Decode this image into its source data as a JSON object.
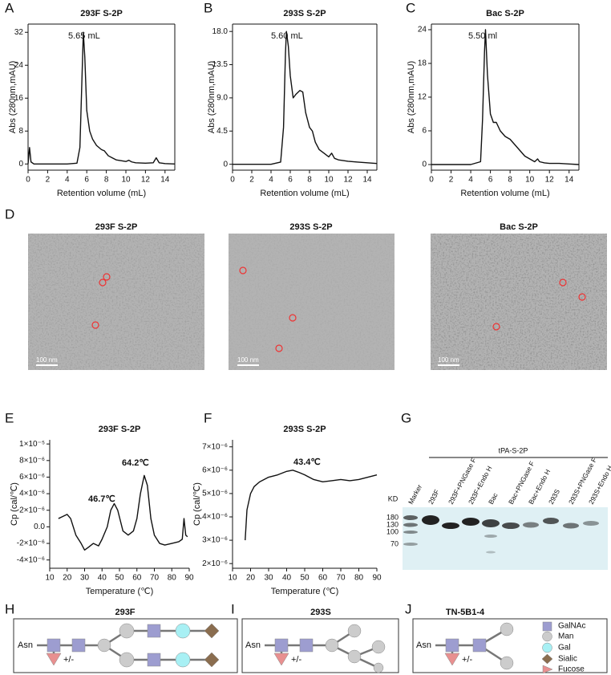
{
  "panel_letters": [
    "A",
    "B",
    "C",
    "D",
    "E",
    "F",
    "G",
    "H",
    "I",
    "J"
  ],
  "chart_data": [
    {
      "type": "line",
      "title": "293F S-2P",
      "xlabel": "Retention volume (mL)",
      "ylabel": "Abs (280nm,mAU)",
      "box": true,
      "xlim": [
        0,
        15
      ],
      "xticks": [
        0,
        2,
        4,
        6,
        8,
        10,
        12,
        14
      ],
      "ylim": [
        -1.5,
        34
      ],
      "yticks": [
        0,
        8,
        16,
        24,
        32
      ],
      "annotations": [
        "5.65 mL"
      ],
      "x": [
        0,
        0.15,
        0.3,
        0.6,
        1,
        2,
        3,
        4,
        5,
        5.3,
        5.5,
        5.65,
        5.8,
        6,
        6.3,
        6.6,
        7,
        7.5,
        7.8,
        8.2,
        8.6,
        9,
        9.5,
        10,
        10.3,
        10.6,
        11,
        12,
        12.8,
        13.1,
        13.4,
        14,
        15
      ],
      "series": [
        {
          "color": "#111111",
          "values": [
            0,
            4,
            0.5,
            0,
            0,
            0,
            0,
            0,
            0.2,
            4,
            20,
            32,
            26,
            13,
            8,
            6,
            4.5,
            3.5,
            3.2,
            2,
            1.5,
            1,
            0.8,
            0.6,
            0.9,
            0.5,
            0.3,
            0.2,
            0.3,
            1.5,
            0.3,
            0.1,
            0
          ]
        }
      ]
    },
    {
      "type": "line",
      "title": "293S S-2P",
      "xlabel": "Retention volume (mL)",
      "ylabel": "Abs (280nm,mAU)",
      "box": true,
      "xlim": [
        0,
        15
      ],
      "xticks": [
        0,
        2,
        4,
        6,
        8,
        10,
        12,
        14
      ],
      "ylim": [
        -0.8,
        19
      ],
      "yticks": [
        0,
        {
          "value": 4.5,
          "label": "4.5"
        },
        {
          "value": 9,
          "label": "9.0"
        },
        {
          "value": 13.5,
          "label": "13.5"
        },
        {
          "value": 18,
          "label": "18.0"
        }
      ],
      "annotations": [
        "5.60 mL"
      ],
      "x": [
        0,
        1,
        2,
        3,
        4,
        5,
        5.3,
        5.5,
        5.6,
        5.8,
        6,
        6.3,
        6.6,
        7,
        7.3,
        7.6,
        8,
        8.3,
        8.6,
        9,
        9.5,
        10,
        10.3,
        10.6,
        11,
        12,
        13,
        14,
        15
      ],
      "series": [
        {
          "color": "#111111",
          "values": [
            0,
            0,
            0,
            0,
            0,
            0.3,
            5,
            15,
            18,
            16,
            12,
            9,
            9.5,
            10,
            9.8,
            7,
            5,
            4.5,
            3,
            2,
            1.5,
            1,
            1.5,
            0.8,
            0.6,
            0.4,
            0.3,
            0.2,
            0.1
          ]
        }
      ]
    },
    {
      "type": "line",
      "title": "Bac S-2P",
      "xlabel": "Retention volume (mL)",
      "ylabel": "Abs (280nm,mAU)",
      "box": true,
      "xlim": [
        0,
        15
      ],
      "xticks": [
        0,
        2,
        4,
        6,
        8,
        10,
        12,
        14
      ],
      "ylim": [
        -1,
        25
      ],
      "yticks": [
        0,
        6,
        12,
        18,
        24
      ],
      "annotations": [
        "5.50 ml"
      ],
      "x": [
        0,
        1,
        2,
        3,
        4,
        5,
        5.2,
        5.4,
        5.5,
        5.7,
        6,
        6.3,
        6.6,
        7,
        7.5,
        8,
        8.5,
        9,
        9.5,
        10,
        10.5,
        10.8,
        11,
        11.5,
        12,
        13,
        14,
        15
      ],
      "series": [
        {
          "color": "#111111",
          "values": [
            0,
            0,
            0,
            0,
            0,
            0.5,
            8,
            20,
            24,
            16,
            9,
            7.5,
            7.5,
            6,
            5,
            4.5,
            3.5,
            2.5,
            1.5,
            1,
            0.5,
            1,
            0.5,
            0.3,
            0.2,
            0.2,
            0.1,
            0
          ]
        }
      ]
    },
    {
      "type": "line",
      "title": "293F S-2P",
      "xlabel": "Temperature (℃)",
      "ylabel": "Cp (cal/℃)",
      "box": false,
      "xlim": [
        10,
        90
      ],
      "xticks": [
        10,
        20,
        30,
        40,
        50,
        60,
        70,
        80,
        90
      ],
      "ylim": [
        -5e-06,
        1.05e-05
      ],
      "yticks": [
        {
          "value": -4e-06,
          "label": "-4×10⁻⁶"
        },
        {
          "value": -2e-06,
          "label": "-2×10⁻⁶"
        },
        {
          "value": 0,
          "label": "0.0"
        },
        {
          "value": 2e-06,
          "label": "2×10⁻⁶"
        },
        {
          "value": 4e-06,
          "label": "4×10⁻⁶"
        },
        {
          "value": 6e-06,
          "label": "6×10⁻⁶"
        },
        {
          "value": 8e-06,
          "label": "8×10⁻⁶"
        },
        {
          "value": 1e-05,
          "label": "1×10⁻⁵"
        }
      ],
      "annotations": [
        "46.7℃",
        "64.2℃"
      ],
      "x": [
        15,
        17,
        20,
        22,
        25,
        28,
        30,
        32,
        35,
        38,
        40,
        43,
        45,
        47,
        49,
        52,
        55,
        58,
        60,
        62,
        64.2,
        66,
        68,
        70,
        73,
        76,
        80,
        84,
        86,
        87,
        88,
        89
      ],
      "series": [
        {
          "color": "#111111",
          "values": [
            1e-06,
            1.2e-06,
            1.5e-06,
            1e-06,
            -1e-06,
            -2e-06,
            -2.8e-06,
            -2.5e-06,
            -2e-06,
            -2.3e-06,
            -1.5e-06,
            0,
            2e-06,
            2.8e-06,
            2e-06,
            -5e-07,
            -1e-06,
            -5e-07,
            1e-06,
            4e-06,
            6.2e-06,
            5e-06,
            1e-06,
            -1e-06,
            -2e-06,
            -2.2e-06,
            -2e-06,
            -1.8e-06,
            -1.5e-06,
            1e-06,
            -1e-06,
            -1.2e-06
          ]
        }
      ]
    },
    {
      "type": "line",
      "title": "293S S-2P",
      "xlabel": "Temperature (℃)",
      "ylabel": "Cp (cal/℃)",
      "box": false,
      "xlim": [
        10,
        90
      ],
      "xticks": [
        10,
        20,
        30,
        40,
        50,
        60,
        70,
        80,
        90
      ],
      "ylim": [
        1.8e-06,
        7.3e-06
      ],
      "yticks": [
        {
          "value": 2e-06,
          "label": "2×10⁻⁶"
        },
        {
          "value": 3e-06,
          "label": "3×10⁻⁶"
        },
        {
          "value": 4e-06,
          "label": "4×10⁻⁶"
        },
        {
          "value": 5e-06,
          "label": "5×10⁻⁶"
        },
        {
          "value": 6e-06,
          "label": "6×10⁻⁶"
        },
        {
          "value": 7e-06,
          "label": "7×10⁻⁶"
        }
      ],
      "annotations": [
        "43.4℃"
      ],
      "x": [
        17,
        18,
        20,
        22,
        25,
        30,
        35,
        40,
        43.4,
        47,
        50,
        55,
        60,
        65,
        70,
        75,
        80,
        85,
        90
      ],
      "series": [
        {
          "color": "#111111",
          "values": [
            3e-06,
            4.3e-06,
            5e-06,
            5.3e-06,
            5.5e-06,
            5.7e-06,
            5.8e-06,
            5.95e-06,
            6e-06,
            5.9e-06,
            5.8e-06,
            5.6e-06,
            5.5e-06,
            5.55e-06,
            5.6e-06,
            5.55e-06,
            5.6e-06,
            5.7e-06,
            5.8e-06
          ]
        }
      ]
    }
  ],
  "em": {
    "titles": [
      "293F S-2P",
      "293S S-2P",
      "Bac S-2P"
    ],
    "scale_bar": "100 nm"
  },
  "gel": {
    "header": "tPA-S-2P",
    "kd_label": "KD",
    "lanes": [
      "Marker",
      "293F",
      "293F+PNGase F",
      "293F+Endo H",
      "Bac",
      "Bac+PNGase F",
      "Bac+Endo H",
      "293S",
      "293S+PNGase F",
      "293S+Endo H"
    ],
    "markers": [
      "180",
      "130",
      "100",
      "70"
    ]
  },
  "glycans": {
    "titles": [
      "293F",
      "293S",
      "TN-5B1-4"
    ],
    "asn": "Asn",
    "fucose_note": "+/-",
    "legend": [
      "GalNAc",
      "Man",
      "Gal",
      "Sialic",
      "Fucose"
    ]
  }
}
